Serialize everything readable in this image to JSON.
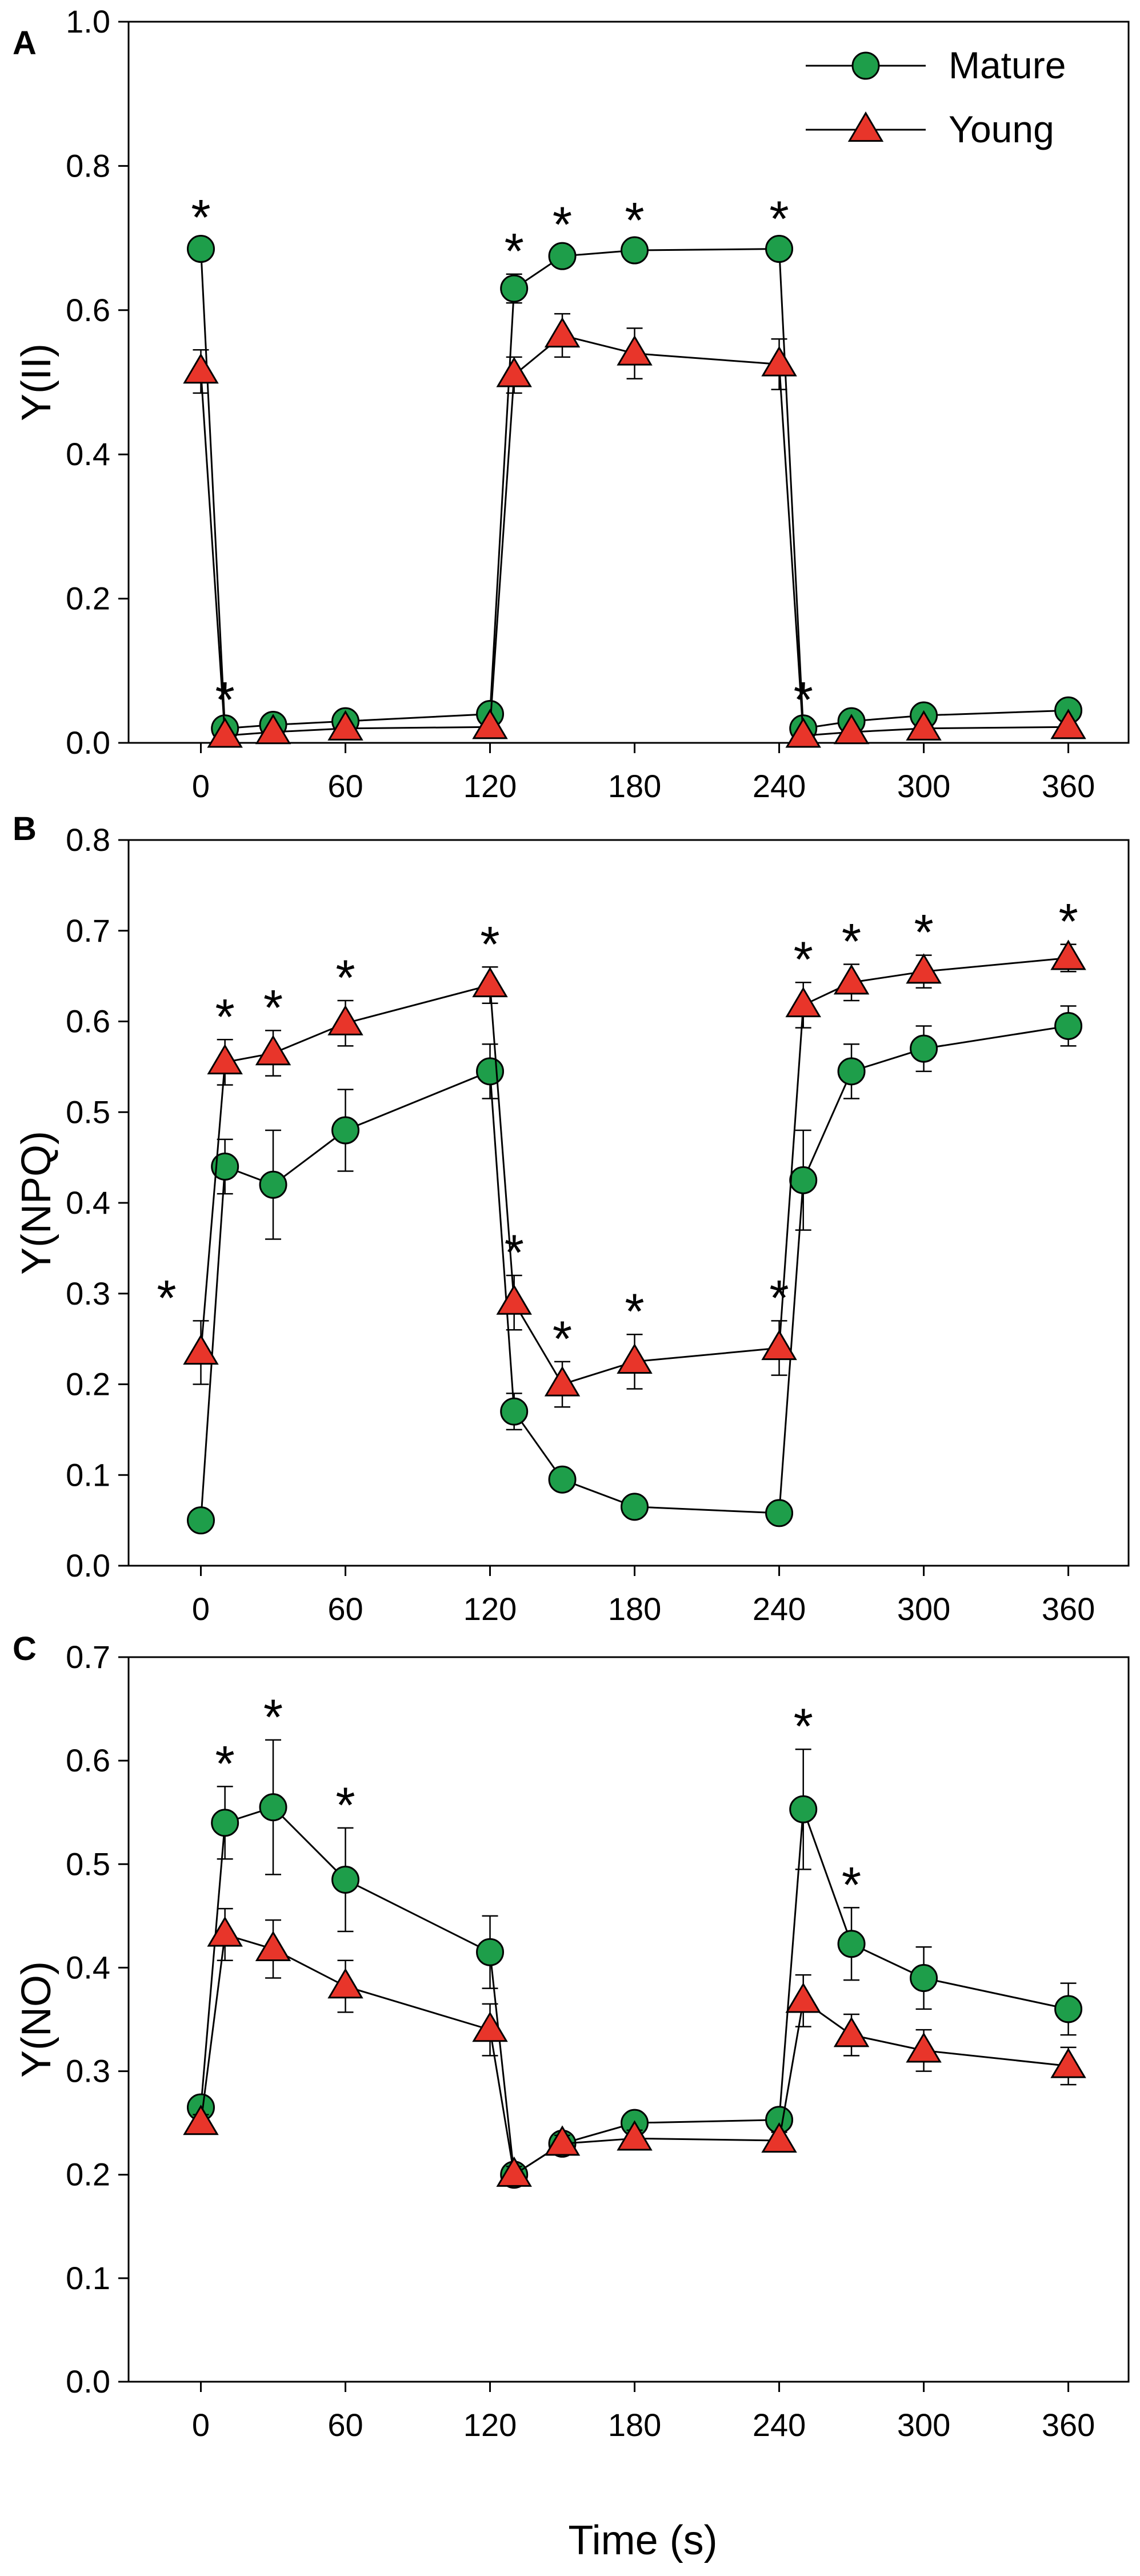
{
  "chart_data": {
    "type": "line",
    "legend": [
      {
        "name": "Mature",
        "marker": "circle",
        "color": "#1e9e4a"
      },
      {
        "name": "Young",
        "marker": "triangle",
        "color": "#e8352a"
      }
    ],
    "xlabel": "Time (s)",
    "x_ticks": [
      0,
      60,
      120,
      180,
      240,
      300,
      360
    ],
    "x": [
      0,
      10,
      30,
      60,
      120,
      130,
      150,
      180,
      240,
      250,
      270,
      300,
      360
    ],
    "xlim": [
      -30,
      385
    ],
    "panels": [
      {
        "letter": "A",
        "ylabel": "Y(II)",
        "ylim": [
          0,
          1.0
        ],
        "y_ticks": [
          "0.0",
          "0.2",
          "0.4",
          "0.6",
          "0.8",
          "1.0"
        ],
        "series": [
          {
            "name": "Mature",
            "values": [
              0.685,
              0.02,
              0.025,
              0.03,
              0.04,
              0.63,
              0.675,
              0.683,
              0.685,
              0.02,
              0.03,
              0.038,
              0.045
            ],
            "errors": [
              0.012,
              0.008,
              0.008,
              0.008,
              0.01,
              0.02,
              0.012,
              0.01,
              0.01,
              0.008,
              0.008,
              0.008,
              0.01
            ]
          },
          {
            "name": "Young",
            "values": [
              0.515,
              0.01,
              0.015,
              0.02,
              0.022,
              0.51,
              0.565,
              0.54,
              0.525,
              0.01,
              0.015,
              0.02,
              0.022
            ],
            "errors": [
              0.03,
              0.005,
              0.005,
              0.005,
              0.006,
              0.025,
              0.03,
              0.035,
              0.035,
              0.005,
              0.005,
              0.005,
              0.005
            ]
          }
        ],
        "significance": [
          0,
          10,
          130,
          150,
          180,
          240,
          250
        ]
      },
      {
        "letter": "B",
        "ylabel": "Y(NPQ)",
        "ylim": [
          0,
          0.8
        ],
        "y_ticks": [
          "0.0",
          "0.1",
          "0.2",
          "0.3",
          "0.4",
          "0.5",
          "0.6",
          "0.7",
          "0.8"
        ],
        "series": [
          {
            "name": "Mature",
            "values": [
              0.05,
              0.44,
              0.42,
              0.48,
              0.545,
              0.17,
              0.095,
              0.065,
              0.058,
              0.425,
              0.545,
              0.57,
              0.595
            ],
            "errors": [
              0.005,
              0.03,
              0.06,
              0.045,
              0.03,
              0.02,
              0.01,
              0.008,
              0.008,
              0.055,
              0.03,
              0.025,
              0.022
            ]
          },
          {
            "name": "Young",
            "values": [
              0.235,
              0.555,
              0.565,
              0.598,
              0.64,
              0.29,
              0.2,
              0.225,
              0.24,
              0.618,
              0.643,
              0.655,
              0.67
            ],
            "errors": [
              0.035,
              0.025,
              0.025,
              0.025,
              0.02,
              0.03,
              0.025,
              0.03,
              0.03,
              0.025,
              0.02,
              0.018,
              0.015
            ]
          }
        ],
        "significance": [
          0,
          10,
          30,
          60,
          120,
          130,
          150,
          180,
          240,
          250,
          270,
          300,
          360
        ]
      },
      {
        "letter": "C",
        "ylabel": "Y(NO)",
        "ylim": [
          0,
          0.7
        ],
        "y_ticks": [
          "0.0",
          "0.1",
          "0.2",
          "0.3",
          "0.4",
          "0.5",
          "0.6",
          "0.7"
        ],
        "series": [
          {
            "name": "Mature",
            "values": [
              0.265,
              0.54,
              0.555,
              0.485,
              0.415,
              0.2,
              0.23,
              0.25,
              0.253,
              0.553,
              0.423,
              0.39,
              0.36
            ],
            "errors": [
              0.01,
              0.035,
              0.065,
              0.05,
              0.035,
              0.01,
              0.01,
              0.01,
              0.01,
              0.058,
              0.035,
              0.03,
              0.025
            ]
          },
          {
            "name": "Young",
            "values": [
              0.25,
              0.432,
              0.418,
              0.382,
              0.34,
              0.2,
              0.23,
              0.235,
              0.233,
              0.368,
              0.335,
              0.32,
              0.305
            ],
            "errors": [
              0.008,
              0.025,
              0.028,
              0.025,
              0.025,
              0.008,
              0.008,
              0.008,
              0.008,
              0.025,
              0.02,
              0.02,
              0.018
            ]
          }
        ],
        "significance": [
          10,
          30,
          60,
          250,
          270
        ]
      }
    ]
  }
}
